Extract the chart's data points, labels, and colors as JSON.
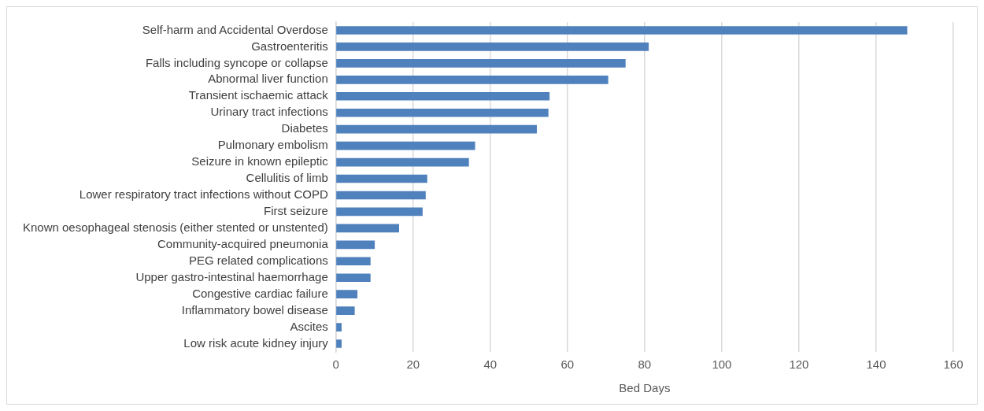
{
  "chart_data": {
    "type": "bar",
    "orientation": "horizontal",
    "xlabel": "Bed Days",
    "categories": [
      "Self-harm and Accidental Overdose",
      "Gastroenteritis",
      "Falls including syncope or collapse",
      "Abnormal liver function",
      "Transient ischaemic attack",
      "Urinary tract infections",
      "Diabetes",
      "Pulmonary embolism",
      "Seizure in known epileptic",
      "Cellulitis of limb",
      "Lower respiratory tract infections without COPD",
      "First seizure",
      "Known oesophageal stenosis (either stented or unstented)",
      "Community-acquired pneumonia",
      "PEG related complications",
      "Upper gastro-intestinal haemorrhage",
      "Congestive cardiac failure",
      "Inflammatory bowel disease",
      "Ascites",
      "Low risk acute kidney injury"
    ],
    "values": [
      148,
      81,
      75,
      70.5,
      55.3,
      55,
      52,
      36,
      34.4,
      23.6,
      23.2,
      22.4,
      16.3,
      10,
      8.9,
      8.9,
      5.5,
      4.8,
      1.4,
      1.4
    ],
    "color": "#4f81bd",
    "xlim": [
      0,
      160
    ],
    "xticks": [
      0,
      20,
      40,
      60,
      80,
      100,
      120,
      140,
      160
    ],
    "grid": "x",
    "legend": false
  }
}
